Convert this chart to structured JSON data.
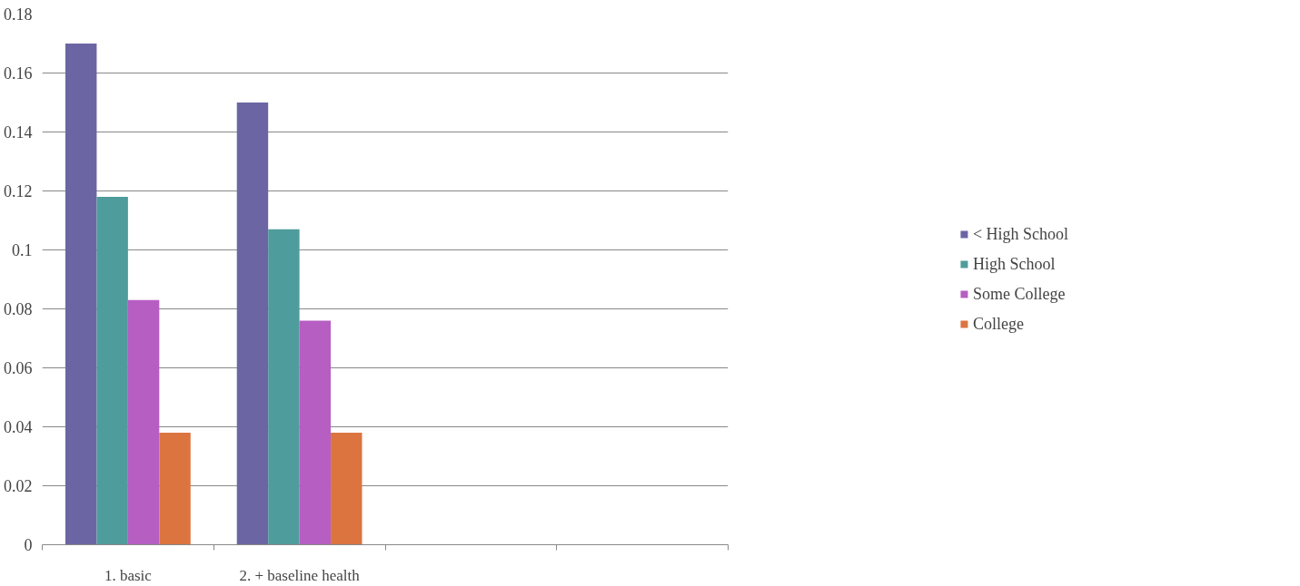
{
  "chart_data": {
    "type": "bar",
    "categories": [
      "1. basic",
      "2. + baseline health",
      null,
      null
    ],
    "series": [
      {
        "name": "< High School",
        "color": "#6b66a3",
        "values": [
          0.17,
          0.15,
          null,
          null
        ]
      },
      {
        "name": "High School",
        "color": "#4f9c9c",
        "values": [
          0.118,
          0.107,
          null,
          null
        ]
      },
      {
        "name": "Some College",
        "color": "#b65ec2",
        "values": [
          0.083,
          0.076,
          null,
          null
        ]
      },
      {
        "name": "College",
        "color": "#dc7440",
        "values": [
          0.038,
          0.038,
          null,
          null
        ]
      }
    ],
    "ylim": [
      0,
      0.18
    ],
    "yticks": [
      0,
      0.02,
      0.04,
      0.06,
      0.08,
      0.1,
      0.12,
      0.14,
      0.16,
      0.18
    ],
    "grid": "y",
    "legend": "right"
  }
}
